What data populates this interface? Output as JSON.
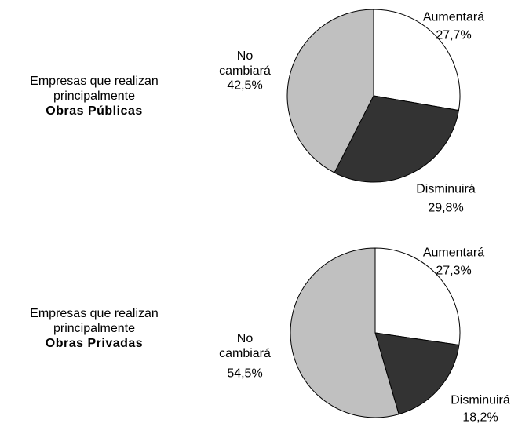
{
  "chart_data": [
    {
      "type": "pie",
      "title": "Empresas que realizan principalmente",
      "subtitle": "Obras Públicas",
      "categories": [
        "Aumentará",
        "Disminuirá",
        "No cambiará"
      ],
      "values": [
        27.7,
        29.8,
        42.5
      ],
      "value_labels": [
        "27,7%",
        "29,8%",
        "42,5%"
      ],
      "colors": [
        "#ffffff",
        "#333333",
        "#c0c0c0"
      ]
    },
    {
      "type": "pie",
      "title": "Empresas que realizan principalmente",
      "subtitle": "Obras Privadas",
      "categories": [
        "Aumentará",
        "Disminuirá",
        "No cambiará"
      ],
      "values": [
        27.3,
        18.2,
        54.5
      ],
      "value_labels": [
        "27,3%",
        "18,2%",
        "54,5%"
      ],
      "colors": [
        "#ffffff",
        "#333333",
        "#c0c0c0"
      ]
    }
  ]
}
